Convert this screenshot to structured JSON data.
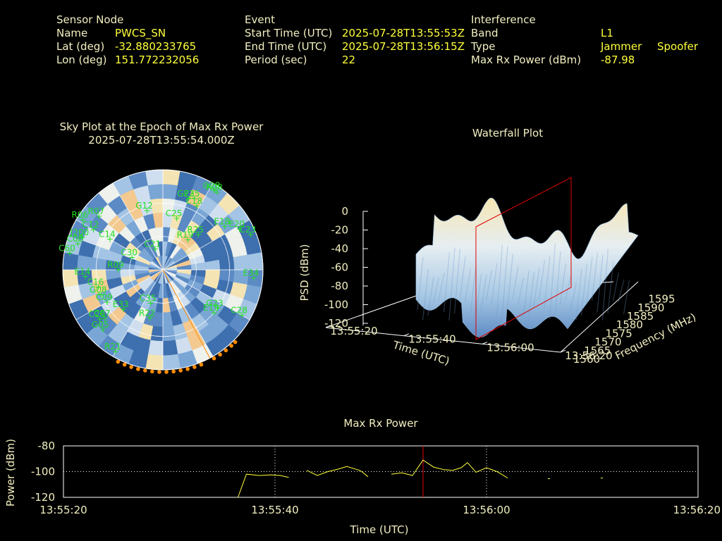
{
  "sensor": {
    "heading": "Sensor Node",
    "name_label": "Name",
    "name_value": "PWCS_SN",
    "lat_label": "Lat (deg)",
    "lat_value": "-32.880233765",
    "lon_label": "Lon (deg)",
    "lon_value": "151.772232056"
  },
  "event": {
    "heading": "Event",
    "start_label": "Start Time (UTC)",
    "start_value": "2025-07-28T13:55:53Z",
    "end_label": "End Time (UTC)",
    "end_value": "2025-07-28T13:56:15Z",
    "period_label": "Period (sec)",
    "period_value": "22"
  },
  "interference": {
    "heading": "Interference",
    "band_label": "Band",
    "band_value": "L1",
    "type_label": "Type",
    "type_value_1": "Jammer",
    "type_value_2": "Spoofer",
    "power_label": "Max Rx Power (dBm)",
    "power_value": "-87.98"
  },
  "colors": {
    "text": "#f2efc0",
    "value": "#ffff3c",
    "satellite": "#22e022",
    "marker": "#ff8c00",
    "epoch_line": "#e00000"
  },
  "chart_data": [
    {
      "type": "polar-heatmap",
      "title": "Sky Plot at the Epoch of Max Rx Power",
      "subtitle": "2025-07-28T13:55:54.000Z",
      "satellites": [
        {
          "id": "R08",
          "az": 35,
          "el": 5
        },
        {
          "id": "G28",
          "az": 33,
          "el": 5
        },
        {
          "id": "G23",
          "az": 20,
          "el": 22
        },
        {
          "id": "E25",
          "az": 24,
          "el": 20
        },
        {
          "id": "C18",
          "az": 28,
          "el": 25
        },
        {
          "id": "R06",
          "az": 302,
          "el": 5
        },
        {
          "id": "R07",
          "az": 310,
          "el": 15
        },
        {
          "id": "C12",
          "az": 300,
          "el": 18
        },
        {
          "id": "J200",
          "az": 292,
          "el": 12
        },
        {
          "id": "C08",
          "az": 287,
          "el": 10
        },
        {
          "id": "C60",
          "az": 280,
          "el": 5
        },
        {
          "id": "C14",
          "az": 300,
          "el": 35
        },
        {
          "id": "G12",
          "az": 345,
          "el": 35
        },
        {
          "id": "C25",
          "az": 15,
          "el": 42
        },
        {
          "id": "E18",
          "az": 55,
          "el": 22
        },
        {
          "id": "E20",
          "az": 62,
          "el": 12
        },
        {
          "id": "C23",
          "az": 68,
          "el": 5
        },
        {
          "id": "R25",
          "az": 45,
          "el": 45
        },
        {
          "id": "R19",
          "az": 40,
          "el": 55
        },
        {
          "id": "C21",
          "az": 340,
          "el": 70
        },
        {
          "id": "C30",
          "az": 292,
          "el": 60
        },
        {
          "id": "R09",
          "az": 270,
          "el": 50
        },
        {
          "id": "E14",
          "az": 265,
          "el": 20
        },
        {
          "id": "C16",
          "az": 255,
          "el": 30
        },
        {
          "id": "G08",
          "az": 248,
          "el": 30
        },
        {
          "id": "C09",
          "az": 240,
          "el": 32
        },
        {
          "id": "E33",
          "az": 225,
          "el": 40
        },
        {
          "id": "C35",
          "az": 200,
          "el": 58
        },
        {
          "id": "R22",
          "az": 195,
          "el": 45
        },
        {
          "id": "E34",
          "az": 95,
          "el": 8
        },
        {
          "id": "C28",
          "az": 120,
          "el": 8
        },
        {
          "id": "G23b",
          "label": "G23",
          "az": 125,
          "el": 30
        },
        {
          "id": "E19",
          "az": 130,
          "el": 30
        },
        {
          "id": "C26",
          "az": 232,
          "el": 18
        },
        {
          "id": "C07",
          "az": 230,
          "el": 22
        },
        {
          "id": "G05",
          "az": 225,
          "el": 14
        },
        {
          "id": "R21",
          "az": 210,
          "el": 5
        }
      ],
      "markers_az": [
        158,
        162,
        166,
        170,
        174,
        178,
        182,
        186,
        190,
        194,
        198,
        202,
        206,
        150,
        146,
        142,
        138,
        135
      ],
      "jammer_az": 152
    },
    {
      "type": "surface3d",
      "title": "Waterfall Plot",
      "zlabel": "PSD (dBm)",
      "xlabel": "Time (UTC)",
      "ylabel": "Frequency (MHz)",
      "z_ticks": [
        "0",
        "-20",
        "-40",
        "-60",
        "-80",
        "-100",
        "-120"
      ],
      "time_ticks": [
        "13:55:20",
        "13:55:40",
        "13:56:00",
        "13:56:20"
      ],
      "freq_ticks": [
        "1560",
        "1565",
        "1570",
        "1575",
        "1580",
        "1585",
        "1590",
        "1595"
      ],
      "zlim": [
        -120,
        0
      ]
    },
    {
      "type": "line",
      "title": "Max Rx Power",
      "xlabel": "Time (UTC)",
      "ylabel": "Power (dBm)",
      "ylim": [
        -120,
        -80
      ],
      "y_ticks": [
        "-80",
        "-100",
        "-120"
      ],
      "x_ticks": [
        "13:55:20",
        "13:55:40",
        "13:56:00",
        "13:56:20"
      ],
      "xlim": [
        0,
        60
      ],
      "epoch_t": 34,
      "segments": [
        [
          [
            16.5,
            -120
          ],
          [
            17.3,
            -102
          ],
          [
            18.5,
            -103
          ],
          [
            19.6,
            -102.5
          ],
          [
            20.5,
            -103
          ],
          [
            21.3,
            -104.5
          ]
        ],
        [
          [
            23.0,
            -99
          ],
          [
            24.0,
            -103
          ],
          [
            25.0,
            -100
          ],
          [
            26.0,
            -98
          ],
          [
            26.8,
            -96
          ],
          [
            27.8,
            -98.5
          ],
          [
            28.0,
            -99
          ],
          [
            28.2,
            -100
          ],
          [
            28.8,
            -104
          ]
        ],
        [
          [
            31.0,
            -102
          ],
          [
            32.0,
            -101
          ],
          [
            33.0,
            -103
          ],
          [
            34.0,
            -91
          ],
          [
            35.0,
            -96.5
          ],
          [
            36.0,
            -98.5
          ],
          [
            36.8,
            -99
          ],
          [
            37.6,
            -97
          ],
          [
            38.2,
            -93
          ],
          [
            39.0,
            -100.5
          ],
          [
            40.0,
            -97
          ],
          [
            41.0,
            -100
          ],
          [
            42.0,
            -105
          ]
        ],
        [
          [
            45.8,
            -105.5
          ],
          [
            46.0,
            -105.5
          ]
        ],
        [
          [
            50.8,
            -105
          ],
          [
            51.0,
            -105
          ]
        ]
      ]
    }
  ]
}
